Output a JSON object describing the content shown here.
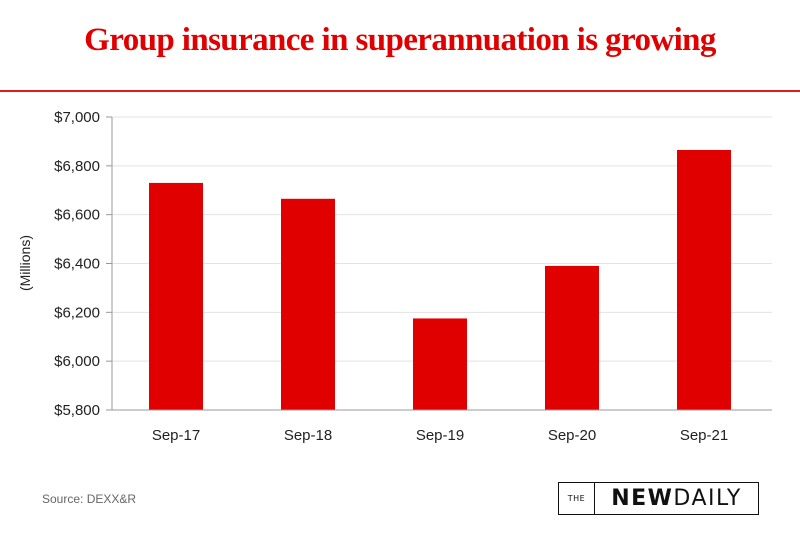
{
  "chart_data": {
    "type": "bar",
    "title": "Group insurance in superannuation is growing",
    "xlabel": "",
    "ylabel": "(Millions)",
    "categories": [
      "Sep-17",
      "Sep-18",
      "Sep-19",
      "Sep-20",
      "Sep-21"
    ],
    "values": [
      6730,
      6665,
      6175,
      6390,
      6865
    ],
    "ylim": [
      5800,
      7000
    ],
    "yticks": [
      5800,
      6000,
      6200,
      6400,
      6600,
      6800,
      7000
    ],
    "ytick_labels": [
      "$5,800",
      "$6,000",
      "$6,200",
      "$6,400",
      "$6,600",
      "$6,800",
      "$7,000"
    ],
    "grid": true,
    "bar_color": "#e00000"
  },
  "footer": {
    "source": "Source: DEXX&R",
    "logo_the": "THE",
    "logo_new": "NEW",
    "logo_daily": "DAILY"
  },
  "colors": {
    "accent": "#e00000",
    "grid": "#e3e3e3",
    "axis": "#999999"
  }
}
